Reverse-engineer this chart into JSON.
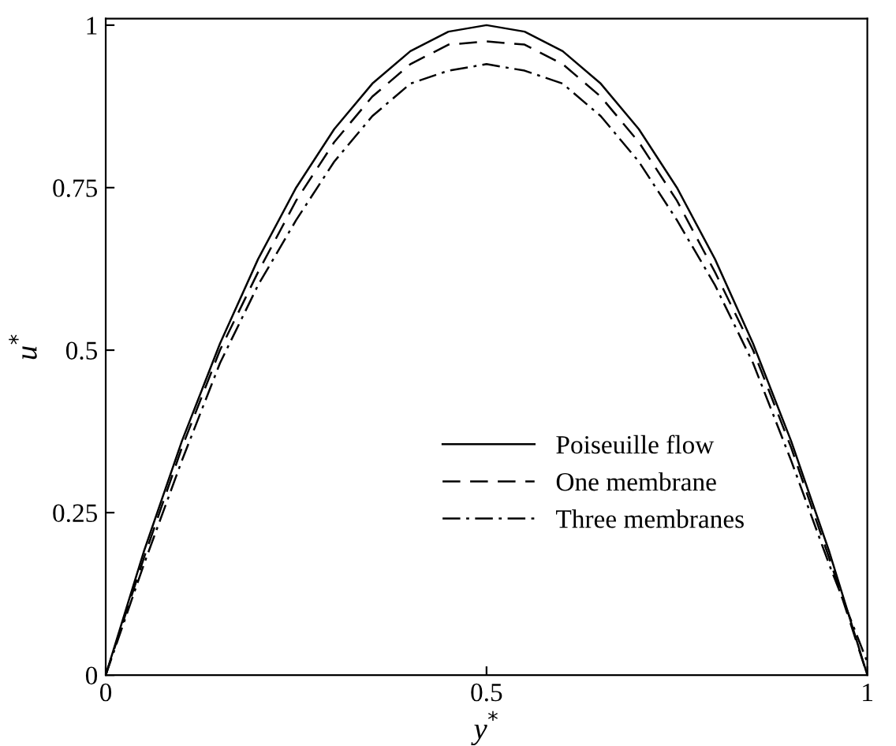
{
  "chart_data": {
    "type": "line",
    "xlabel": "y$^{*}$",
    "ylabel": "u$^{*}$",
    "x": [
      0,
      0.05,
      0.1,
      0.15,
      0.2,
      0.25,
      0.3,
      0.35,
      0.4,
      0.45,
      0.5,
      0.55,
      0.6,
      0.65,
      0.7,
      0.75,
      0.8,
      0.85,
      0.9,
      0.95,
      1
    ],
    "series": [
      {
        "name": "Poiseuille flow",
        "color": "#000000",
        "line_style": "solid",
        "values": [
          0,
          0.19,
          0.36,
          0.51,
          0.64,
          0.75,
          0.84,
          0.91,
          0.96,
          0.99,
          1.0,
          0.99,
          0.96,
          0.91,
          0.84,
          0.75,
          0.64,
          0.51,
          0.36,
          0.19,
          0
        ]
      },
      {
        "name": "One membrane",
        "color": "#000000",
        "line_style": "dashed",
        "values": [
          0,
          0.18,
          0.35,
          0.5,
          0.62,
          0.73,
          0.82,
          0.89,
          0.94,
          0.97,
          0.975,
          0.97,
          0.94,
          0.89,
          0.82,
          0.73,
          0.62,
          0.5,
          0.35,
          0.18,
          0
        ]
      },
      {
        "name": "Three membranes",
        "color": "#000000",
        "line_style": "dashdot",
        "values": [
          0,
          0.17,
          0.33,
          0.48,
          0.6,
          0.7,
          0.79,
          0.86,
          0.91,
          0.93,
          0.94,
          0.93,
          0.91,
          0.86,
          0.79,
          0.7,
          0.6,
          0.48,
          0.33,
          0.17,
          0.02
        ]
      }
    ],
    "xlim": [
      0,
      1
    ],
    "ylim": [
      0,
      1.01
    ],
    "xticks": [
      0,
      0.5,
      1
    ],
    "yticks": [
      0,
      0.25,
      0.5,
      0.75,
      1
    ],
    "grid": false,
    "legend": "bottom right"
  }
}
